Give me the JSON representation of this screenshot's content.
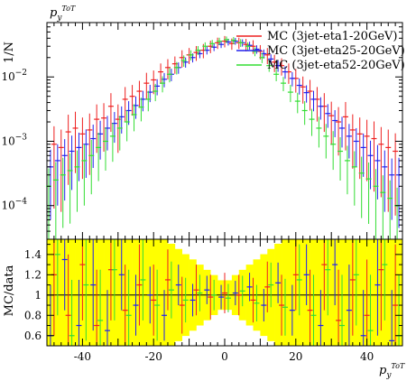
{
  "chart_data": [
    {
      "type": "scatter",
      "title": "p_y^{ToT}",
      "ylabel": "1/N",
      "yscale": "log",
      "ylim": [
        3e-05,
        0.07
      ],
      "xlim": [
        -50,
        50
      ],
      "y_ticks": [
        {
          "value": 0.0001,
          "base": "10",
          "exp": "−4"
        },
        {
          "value": 0.001,
          "base": "10",
          "exp": "−3"
        },
        {
          "value": 0.01,
          "base": "10",
          "exp": "−2"
        }
      ],
      "legend_position": "top-right",
      "series": [
        {
          "name": "MC (3jet-eta1-20GeV)",
          "color": "#ee2020",
          "x": [
            -48,
            -46,
            -44,
            -42,
            -40,
            -38,
            -36,
            -34,
            -32,
            -30,
            -28,
            -26,
            -24,
            -22,
            -20,
            -18,
            -16,
            -14,
            -12,
            -10,
            -8,
            -6,
            -4,
            -2,
            0,
            2,
            4,
            6,
            8,
            10,
            12,
            14,
            16,
            18,
            20,
            22,
            24,
            26,
            28,
            30,
            32,
            34,
            36,
            38,
            40,
            42,
            44,
            46,
            48
          ],
          "y": [
            0.0009,
            0.0008,
            0.0014,
            0.0016,
            0.0013,
            0.0015,
            0.0022,
            0.0023,
            0.0035,
            0.0022,
            0.0045,
            0.005,
            0.006,
            0.008,
            0.009,
            0.012,
            0.014,
            0.016,
            0.02,
            0.022,
            0.024,
            0.026,
            0.03,
            0.034,
            0.036,
            0.033,
            0.034,
            0.032,
            0.03,
            0.025,
            0.022,
            0.017,
            0.015,
            0.012,
            0.0095,
            0.007,
            0.006,
            0.0045,
            0.0035,
            0.0025,
            0.002,
            0.0024,
            0.0015,
            0.0013,
            0.0012,
            0.0011,
            0.0009,
            0.0008,
            0.0007
          ],
          "rel_err": [
            0.9,
            0.9,
            0.85,
            0.8,
            0.8,
            0.8,
            0.7,
            0.7,
            0.6,
            0.7,
            0.55,
            0.5,
            0.45,
            0.45,
            0.4,
            0.35,
            0.35,
            0.3,
            0.3,
            0.28,
            0.26,
            0.25,
            0.22,
            0.2,
            0.2,
            0.2,
            0.2,
            0.22,
            0.24,
            0.25,
            0.28,
            0.3,
            0.3,
            0.35,
            0.4,
            0.45,
            0.5,
            0.55,
            0.6,
            0.65,
            0.7,
            0.7,
            0.75,
            0.8,
            0.8,
            0.85,
            0.85,
            0.9,
            0.9
          ]
        },
        {
          "name": "MC (3jet-eta25-20GeV)",
          "color": "#2020ee",
          "x": [
            -49,
            -47,
            -45,
            -43,
            -41,
            -39,
            -37,
            -35,
            -33,
            -31,
            -29,
            -27,
            -25,
            -23,
            -21,
            -19,
            -17,
            -15,
            -13,
            -11,
            -9,
            -7,
            -5,
            -3,
            -1,
            1,
            3,
            5,
            7,
            9,
            11,
            13,
            15,
            17,
            19,
            21,
            23,
            25,
            27,
            29,
            31,
            33,
            35,
            37,
            39,
            41,
            43,
            45,
            47,
            49
          ],
          "y": [
            0.0004,
            0.0005,
            0.0006,
            0.0007,
            0.0008,
            0.0009,
            0.0011,
            0.0013,
            0.0016,
            0.0019,
            0.0024,
            0.003,
            0.0036,
            0.0045,
            0.0058,
            0.0072,
            0.0092,
            0.011,
            0.014,
            0.017,
            0.02,
            0.023,
            0.026,
            0.029,
            0.032,
            0.035,
            0.036,
            0.034,
            0.031,
            0.027,
            0.023,
            0.019,
            0.015,
            0.012,
            0.0095,
            0.0074,
            0.0057,
            0.0045,
            0.0035,
            0.0027,
            0.0021,
            0.0016,
            0.0012,
            0.001,
            0.0008,
            0.0006,
            0.0005,
            0.0004,
            0.0003,
            0.0003
          ],
          "rel_err": [
            0.85,
            0.8,
            0.8,
            0.75,
            0.7,
            0.7,
            0.65,
            0.6,
            0.55,
            0.5,
            0.45,
            0.4,
            0.38,
            0.35,
            0.3,
            0.28,
            0.25,
            0.22,
            0.2,
            0.18,
            0.16,
            0.15,
            0.14,
            0.13,
            0.12,
            0.12,
            0.12,
            0.13,
            0.14,
            0.15,
            0.16,
            0.18,
            0.2,
            0.22,
            0.25,
            0.28,
            0.3,
            0.35,
            0.38,
            0.4,
            0.45,
            0.5,
            0.55,
            0.6,
            0.65,
            0.7,
            0.75,
            0.8,
            0.8,
            0.85
          ]
        },
        {
          "name": "MC (3jet-eta52-20GeV)",
          "color": "#33dd33",
          "x": [
            -49.5,
            -47.5,
            -45.5,
            -43.5,
            -41.5,
            -39.5,
            -37.5,
            -35.5,
            -33.5,
            -31.5,
            -29.5,
            -27.5,
            -25.5,
            -23.5,
            -21.5,
            -19.5,
            -17.5,
            -15.5,
            -13.5,
            -11.5,
            -9.5,
            -7.5,
            -5.5,
            -3.5,
            -1.5,
            0.5,
            2.5,
            4.5,
            6.5,
            8.5,
            10.5,
            12.5,
            14.5,
            16.5,
            18.5,
            20.5,
            22.5,
            24.5,
            26.5,
            28.5,
            30.5,
            32.5,
            34.5,
            36.5,
            38.5,
            40.5,
            42.5,
            44.5,
            46.5,
            48.5
          ],
          "y": [
            0.0002,
            0.00025,
            0.0003,
            0.00035,
            0.0004,
            0.0005,
            0.0006,
            0.0008,
            0.001,
            0.0012,
            0.0016,
            0.002,
            0.0026,
            0.0034,
            0.0045,
            0.006,
            0.008,
            0.011,
            0.014,
            0.018,
            0.022,
            0.026,
            0.03,
            0.033,
            0.036,
            0.038,
            0.037,
            0.034,
            0.03,
            0.025,
            0.02,
            0.015,
            0.011,
            0.008,
            0.0058,
            0.0042,
            0.003,
            0.0022,
            0.0016,
            0.0012,
            0.0009,
            0.0007,
            0.0005,
            0.0004,
            0.00032,
            0.00026,
            0.0002,
            0.00016,
            0.00013,
            0.0001
          ],
          "rel_err": [
            0.9,
            0.9,
            0.85,
            0.85,
            0.8,
            0.8,
            0.75,
            0.7,
            0.65,
            0.6,
            0.55,
            0.5,
            0.45,
            0.4,
            0.35,
            0.3,
            0.28,
            0.25,
            0.22,
            0.2,
            0.18,
            0.16,
            0.15,
            0.14,
            0.13,
            0.12,
            0.13,
            0.14,
            0.15,
            0.16,
            0.18,
            0.2,
            0.22,
            0.25,
            0.3,
            0.35,
            0.4,
            0.45,
            0.5,
            0.55,
            0.6,
            0.65,
            0.7,
            0.75,
            0.8,
            0.8,
            0.85,
            0.85,
            0.9,
            0.9
          ]
        }
      ]
    },
    {
      "type": "scatter",
      "ylabel": "MC/data",
      "xlabel": "p_y^{ToT}",
      "xlim": [
        -50,
        50
      ],
      "ylim": [
        0.5,
        1.55
      ],
      "x_ticks": [
        -40,
        -20,
        0,
        20,
        40
      ],
      "y_ticks": [
        0.6,
        0.8,
        1,
        1.2,
        1.4
      ],
      "reference_line": 1,
      "band_color": "#ffff00",
      "series": [
        {
          "name": "MC (3jet-eta1-20GeV)",
          "color": "#ee2020",
          "x": [
            -48,
            -44,
            -40,
            -36,
            -32,
            -28,
            -24,
            -20,
            -16,
            -12,
            -8,
            -4,
            0,
            4,
            8,
            12,
            16,
            20,
            24,
            28,
            32,
            36,
            40,
            44,
            48
          ],
          "y": [
            1.2,
            0.8,
            1.3,
            0.7,
            1.25,
            0.85,
            1.1,
            0.95,
            1.15,
            0.9,
            1.05,
            0.98,
            1.02,
            1.0,
            0.95,
            1.08,
            0.9,
            1.2,
            0.85,
            1.3,
            0.75,
            1.15,
            0.8,
            1.25,
            0.9
          ],
          "err": [
            0.6,
            0.6,
            0.55,
            0.55,
            0.5,
            0.45,
            0.4,
            0.35,
            0.3,
            0.28,
            0.25,
            0.22,
            0.2,
            0.2,
            0.22,
            0.25,
            0.3,
            0.35,
            0.4,
            0.45,
            0.5,
            0.55,
            0.55,
            0.6,
            0.6
          ]
        },
        {
          "name": "MC (3jet-eta25-20GeV)",
          "color": "#2020ee",
          "x": [
            -49,
            -45,
            -41,
            -37,
            -33,
            -29,
            -25,
            -21,
            -17,
            -13,
            -9,
            -5,
            -1,
            3,
            7,
            11,
            15,
            19,
            23,
            27,
            31,
            35,
            39,
            43,
            47
          ],
          "y": [
            0.6,
            1.35,
            0.7,
            1.1,
            0.65,
            1.2,
            0.9,
            1.0,
            0.8,
            1.1,
            0.95,
            1.05,
            0.98,
            1.02,
            1.08,
            0.9,
            1.12,
            0.85,
            1.2,
            0.7,
            1.3,
            0.85,
            0.6,
            1.1,
            0.55
          ],
          "err": [
            0.5,
            0.5,
            0.45,
            0.45,
            0.4,
            0.35,
            0.3,
            0.28,
            0.25,
            0.2,
            0.16,
            0.14,
            0.12,
            0.12,
            0.14,
            0.16,
            0.2,
            0.25,
            0.3,
            0.35,
            0.4,
            0.45,
            0.45,
            0.5,
            0.5
          ]
        },
        {
          "name": "MC (3jet-eta52-20GeV)",
          "color": "#33dd33",
          "x": [
            -47,
            -43,
            -39,
            -35,
            -31,
            -27,
            -23,
            -19,
            -15,
            -11,
            -7,
            -3,
            1,
            5,
            9,
            13,
            17,
            21,
            25,
            29,
            33,
            37,
            41,
            45,
            49
          ],
          "y": [
            1.4,
            0.6,
            1.1,
            0.75,
            1.25,
            0.8,
            1.15,
            0.9,
            1.05,
            0.95,
            1.02,
            1.0,
            0.97,
            1.04,
            0.92,
            1.1,
            0.88,
            1.15,
            0.8,
            1.25,
            0.7,
            1.2,
            0.65,
            1.3,
            0.6
          ],
          "err": [
            0.6,
            0.55,
            0.55,
            0.5,
            0.5,
            0.45,
            0.4,
            0.35,
            0.28,
            0.22,
            0.18,
            0.15,
            0.14,
            0.15,
            0.18,
            0.22,
            0.28,
            0.35,
            0.4,
            0.45,
            0.5,
            0.5,
            0.55,
            0.55,
            0.6
          ]
        }
      ]
    }
  ]
}
